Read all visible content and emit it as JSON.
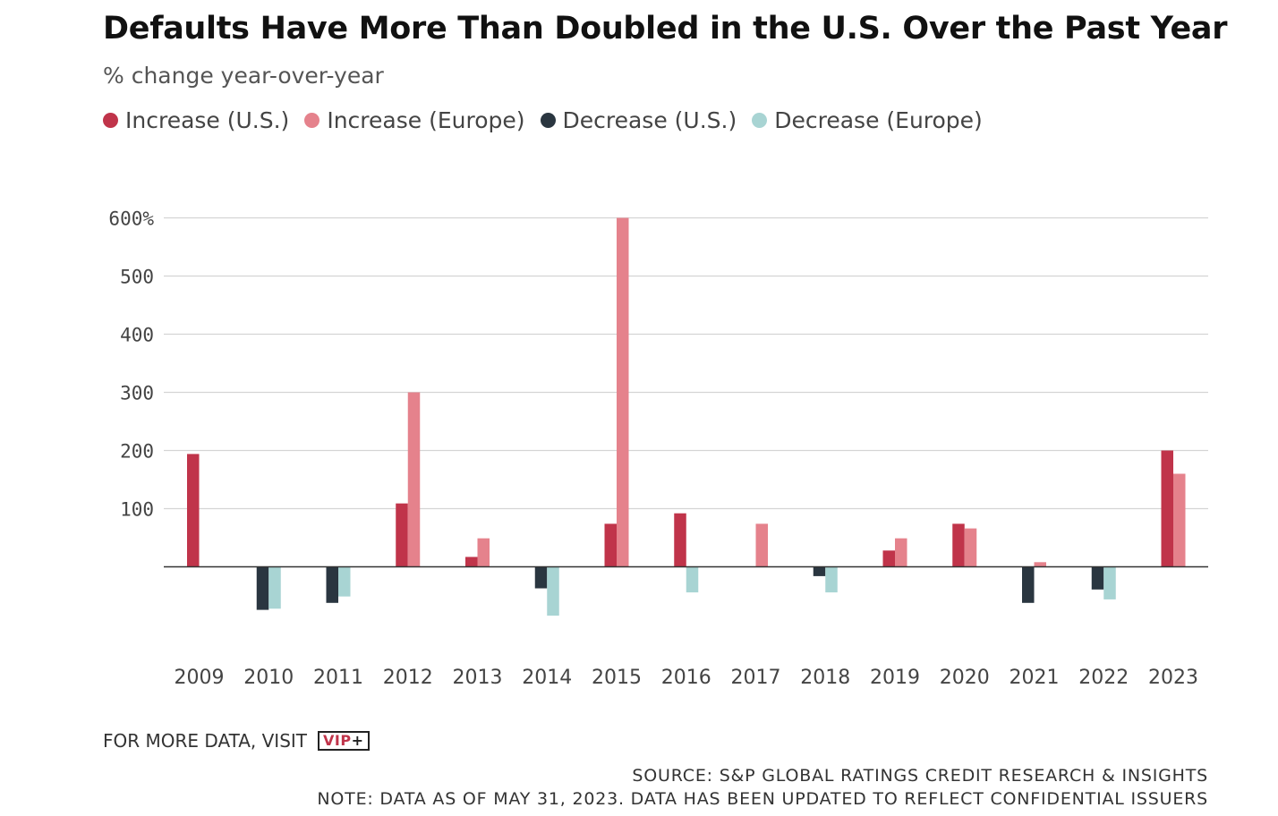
{
  "header": {
    "title": "Defaults Have More Than Doubled in the U.S. Over the Past Year",
    "subtitle": "% change year-over-year"
  },
  "legend": [
    {
      "label": "Increase (U.S.)",
      "color": "#c0344a"
    },
    {
      "label": "Increase (Europe)",
      "color": "#e5828c"
    },
    {
      "label": "Decrease (U.S.)",
      "color": "#2a3640"
    },
    {
      "label": "Decrease (Europe)",
      "color": "#a8d4d3"
    }
  ],
  "chart_data": {
    "type": "bar",
    "title": "Defaults Have More Than Doubled in the U.S. Over the Past Year",
    "subtitle": "% change year-over-year",
    "categories": [
      "2009",
      "2010",
      "2011",
      "2012",
      "2013",
      "2014",
      "2015",
      "2016",
      "2017",
      "2018",
      "2019",
      "2020",
      "2021",
      "2022",
      "2023"
    ],
    "series": [
      {
        "name": "U.S.",
        "values": [
          194,
          -74,
          -62,
          109,
          17,
          -37,
          74,
          92,
          null,
          -16,
          28,
          74,
          -62,
          -39,
          200
        ]
      },
      {
        "name": "Europe",
        "values": [
          null,
          -72,
          -51,
          300,
          49,
          -84,
          600,
          -44,
          74,
          -44,
          49,
          66,
          8,
          -56,
          160
        ]
      }
    ],
    "colors": {
      "increase_us": "#c0344a",
      "increase_europe": "#e5828c",
      "decrease_us": "#2a3640",
      "decrease_europe": "#a8d4d3"
    },
    "yticks": [
      {
        "value": 600,
        "label": "600%"
      },
      {
        "value": 500,
        "label": "500"
      },
      {
        "value": 400,
        "label": "400"
      },
      {
        "value": 300,
        "label": "300"
      },
      {
        "value": 200,
        "label": "200"
      },
      {
        "value": 100,
        "label": "100"
      }
    ],
    "ylim": [
      -100,
      600
    ],
    "grid": true,
    "legend_position": "top-left"
  },
  "footer": {
    "visit_text": "FOR MORE DATA, VISIT",
    "vip_text": "VIP",
    "vip_plus": "+",
    "source": "SOURCE: S&P GLOBAL RATINGS CREDIT RESEARCH & INSIGHTS",
    "note": "NOTE: DATA AS OF MAY 31, 2023. DATA HAS BEEN UPDATED TO REFLECT CONFIDENTIAL ISSUERS"
  }
}
